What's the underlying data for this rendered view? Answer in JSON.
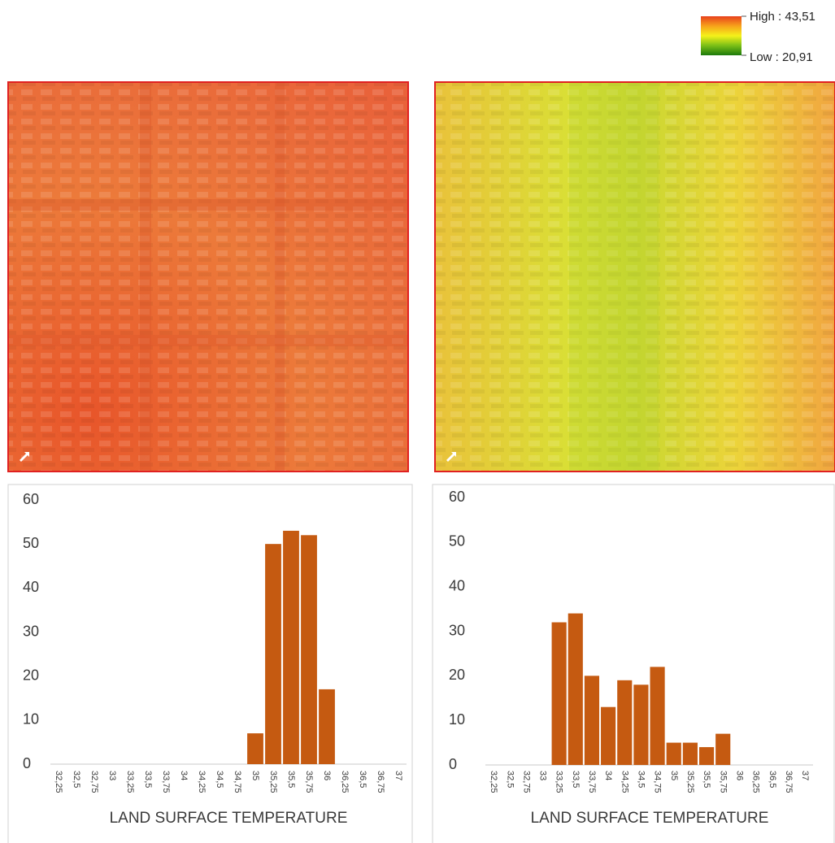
{
  "map_legend": {
    "high": "High : 43,51",
    "low": "Low : 20,91"
  },
  "chart_data": [
    {
      "type": "bar",
      "x_label": "LAND SURFACE TEMPERATURE",
      "color": "#c55a11",
      "categories": [
        "32,25",
        "32,5",
        "32,75",
        "33",
        "33,25",
        "33,5",
        "33,75",
        "34",
        "34,25",
        "34,5",
        "34,75",
        "35",
        "35,25",
        "35,5",
        "35,75",
        "36",
        "36,25",
        "36,5",
        "36,75",
        "37"
      ],
      "values": [
        0,
        0,
        0,
        0,
        0,
        0,
        0,
        0,
        0,
        0,
        0,
        7,
        50,
        53,
        52,
        17,
        0,
        0,
        0,
        0
      ],
      "ylim": [
        0,
        60
      ],
      "yticks": [
        0,
        10,
        20,
        30,
        40,
        50,
        60
      ],
      "grid": false
    },
    {
      "type": "bar",
      "x_label": "LAND SURFACE TEMPERATURE",
      "color": "#c55a11",
      "categories": [
        "32,25",
        "32,5",
        "32,75",
        "33",
        "33,25",
        "33,5",
        "33,75",
        "34",
        "34,25",
        "34,5",
        "34,75",
        "35",
        "35,25",
        "35,5",
        "35,75",
        "36",
        "36,25",
        "36,5",
        "36,75",
        "37"
      ],
      "values": [
        0,
        0,
        0,
        0,
        32,
        34,
        20,
        13,
        19,
        18,
        22,
        5,
        5,
        4,
        7,
        0,
        0,
        0,
        0,
        0
      ],
      "ylim": [
        0,
        60
      ],
      "yticks": [
        0,
        10,
        20,
        30,
        40,
        50,
        60
      ],
      "grid": false
    }
  ]
}
